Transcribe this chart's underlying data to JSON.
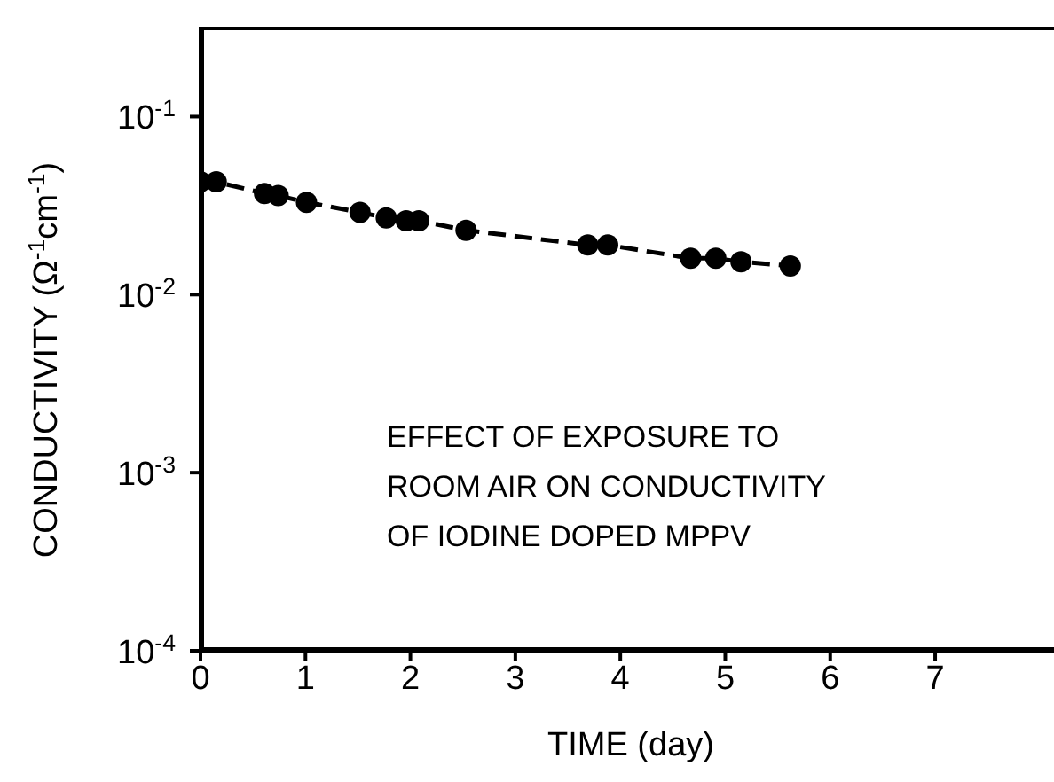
{
  "chart_data": {
    "type": "line",
    "xlabel": "TIME (day)",
    "ylabel": "CONDUCTIVITY  (Ω$^{-1}$cm$^{-1}$)",
    "x": [
      0,
      0.15,
      0.61,
      0.74,
      1.01,
      1.52,
      1.77,
      1.96,
      2.08,
      2.53,
      3.69,
      3.88,
      4.67,
      4.91,
      5.15,
      5.62
    ],
    "series": [
      {
        "color": "#000000",
        "values": [
          0.043,
          0.043,
          0.037,
          0.036,
          0.033,
          0.029,
          0.027,
          0.026,
          0.026,
          0.023,
          0.019,
          0.019,
          0.016,
          0.016,
          0.0153,
          0.0145
        ]
      }
    ],
    "log": true,
    "marker": "circle",
    "line_style": "dashed",
    "xlim": [
      0,
      8.2
    ],
    "xticks": [
      0,
      1,
      2,
      3,
      4,
      5,
      6,
      7
    ],
    "ylim": [
      0.0001,
      0.32
    ],
    "yticks": [
      {
        "value": 0.0001,
        "label": "10$^{-4}$"
      },
      {
        "value": 0.001,
        "label": "10$^{-3}$"
      },
      {
        "value": 0.01,
        "label": "10$^{-2}$"
      },
      {
        "value": 0.1,
        "label": "10$^{-1}$"
      }
    ],
    "annotations": [
      "EFFECT OF EXPOSURE TO\nROOM AIR ON CONDUCTIVITY\nOF IODINE DOPED MPPV"
    ]
  }
}
